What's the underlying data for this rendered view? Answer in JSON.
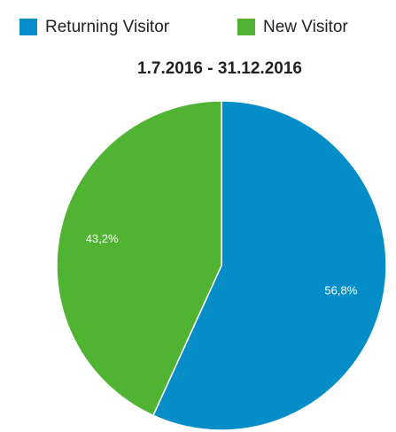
{
  "chart_data": {
    "type": "pie",
    "title": "1.7.2016 - 31.12.2016",
    "categories": [
      "Returning Visitor",
      "New Visitor"
    ],
    "values": [
      56.8,
      43.2
    ],
    "value_labels": [
      "56,8%",
      "43,2%"
    ],
    "colors": [
      "#058dc7",
      "#50b432"
    ]
  }
}
